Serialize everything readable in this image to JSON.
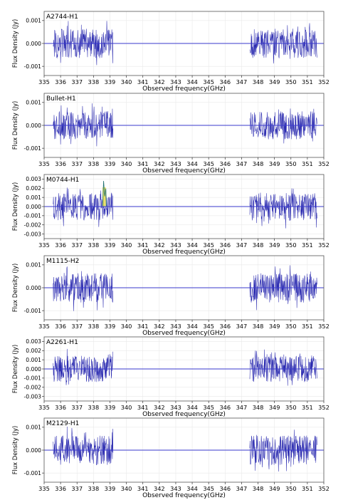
{
  "colors": {
    "spectrum": "#2b2bb0",
    "baseline": "#3a3acd",
    "grid": "#e9e9e9",
    "highlight": "#e7e05a"
  },
  "chart_data": [
    {
      "type": "line",
      "title": "A2744-H1",
      "xlabel": "Observed frequency(GHz)",
      "ylabel": "Flux Density (Jy)",
      "xlim": [
        335,
        352
      ],
      "ylim": [
        -0.0014,
        0.0014
      ],
      "x_ticks": [
        "335",
        "336",
        "337",
        "338",
        "339",
        "340",
        "341",
        "342",
        "343",
        "344",
        "345",
        "346",
        "347",
        "348",
        "349",
        "350",
        "351",
        "352"
      ],
      "y_ticks": [
        {
          "value": 0.001,
          "label": "0.001"
        },
        {
          "value": 0.0,
          "label": "0.000"
        },
        {
          "value": -0.001,
          "label": "-0.001"
        }
      ],
      "baseline": 0.0,
      "grid": true,
      "segments": [
        {
          "x_start": 335.55,
          "x_end": 339.2
        },
        {
          "x_start": 347.5,
          "x_end": 351.6
        }
      ],
      "noise_rms": 0.00038
    },
    {
      "type": "line",
      "title": "Bullet-H1",
      "xlabel": "Observed frequency(GHz)",
      "ylabel": "Flux Density (Jy)",
      "xlim": [
        335,
        352
      ],
      "ylim": [
        -0.0014,
        0.0014
      ],
      "x_ticks": [
        "335",
        "336",
        "337",
        "338",
        "339",
        "340",
        "341",
        "342",
        "343",
        "344",
        "345",
        "346",
        "347",
        "348",
        "349",
        "350",
        "351",
        "352"
      ],
      "y_ticks": [
        {
          "value": 0.001,
          "label": "0.001"
        },
        {
          "value": 0.0,
          "label": "0.000"
        },
        {
          "value": -0.001,
          "label": "-0.001"
        }
      ],
      "baseline": 0.0,
      "grid": true,
      "segments": [
        {
          "x_start": 335.55,
          "x_end": 339.2
        },
        {
          "x_start": 347.5,
          "x_end": 351.6
        }
      ],
      "noise_rms": 0.00036
    },
    {
      "type": "line",
      "title": "M0744-H1",
      "xlabel": "Observed frequency(GHz)",
      "ylabel": "Flux Density (Jy)",
      "xlim": [
        335,
        352
      ],
      "ylim": [
        -0.0035,
        0.0035
      ],
      "x_ticks": [
        "335",
        "336",
        "337",
        "338",
        "339",
        "340",
        "341",
        "342",
        "343",
        "344",
        "345",
        "346",
        "347",
        "348",
        "349",
        "350",
        "351",
        "352"
      ],
      "y_ticks": [
        {
          "value": 0.003,
          "label": "0.003"
        },
        {
          "value": 0.002,
          "label": "0.002"
        },
        {
          "value": 0.001,
          "label": "0.001"
        },
        {
          "value": 0.0,
          "label": "0.000"
        },
        {
          "value": -0.001,
          "label": "-0.001"
        },
        {
          "value": -0.002,
          "label": "-0.002"
        },
        {
          "value": -0.003,
          "label": "-0.003"
        }
      ],
      "baseline": 0.0,
      "grid": true,
      "segments": [
        {
          "x_start": 335.55,
          "x_end": 339.2
        },
        {
          "x_start": 347.5,
          "x_end": 351.6
        }
      ],
      "noise_rms": 0.0009,
      "line_feature": {
        "x_start": 338.55,
        "x_end": 338.75,
        "peak": 0.0028
      }
    },
    {
      "type": "line",
      "title": "M1115-H2",
      "xlabel": "Observed frequency(GHz)",
      "ylabel": "Flux Density (Jy)",
      "xlim": [
        335,
        352
      ],
      "ylim": [
        -0.0014,
        0.0014
      ],
      "x_ticks": [
        "335",
        "336",
        "337",
        "338",
        "339",
        "340",
        "341",
        "342",
        "343",
        "344",
        "345",
        "346",
        "347",
        "348",
        "349",
        "350",
        "351",
        "352"
      ],
      "y_ticks": [
        {
          "value": 0.001,
          "label": "0.001"
        },
        {
          "value": 0.0,
          "label": "0.000"
        },
        {
          "value": -0.001,
          "label": "-0.001"
        }
      ],
      "baseline": 0.0,
      "grid": true,
      "segments": [
        {
          "x_start": 335.55,
          "x_end": 339.2
        },
        {
          "x_start": 347.5,
          "x_end": 351.6
        }
      ],
      "noise_rms": 0.00038
    },
    {
      "type": "line",
      "title": "A2261-H1",
      "xlabel": "Observed frequency(GHz)",
      "ylabel": "Flux Density (Jy)",
      "xlim": [
        335,
        352
      ],
      "ylim": [
        -0.0035,
        0.0035
      ],
      "x_ticks": [
        "335",
        "336",
        "337",
        "338",
        "339",
        "340",
        "341",
        "342",
        "343",
        "344",
        "345",
        "346",
        "347",
        "348",
        "349",
        "350",
        "351",
        "352"
      ],
      "y_ticks": [
        {
          "value": 0.003,
          "label": "0.003"
        },
        {
          "value": 0.002,
          "label": "0.002"
        },
        {
          "value": 0.001,
          "label": "0.001"
        },
        {
          "value": 0.0,
          "label": "0.000"
        },
        {
          "value": -0.001,
          "label": "-0.001"
        },
        {
          "value": -0.002,
          "label": "-0.002"
        },
        {
          "value": -0.003,
          "label": "-0.003"
        }
      ],
      "baseline": 0.0,
      "grid": true,
      "segments": [
        {
          "x_start": 335.55,
          "x_end": 339.2
        },
        {
          "x_start": 347.5,
          "x_end": 351.6
        }
      ],
      "noise_rms": 0.00085
    },
    {
      "type": "line",
      "title": "M2129-H1",
      "xlabel": "Observed frequency(GHz)",
      "ylabel": "Flux Density (Jy)",
      "xlim": [
        335,
        352
      ],
      "ylim": [
        -0.0014,
        0.0014
      ],
      "x_ticks": [
        "335",
        "336",
        "337",
        "338",
        "339",
        "340",
        "341",
        "342",
        "343",
        "344",
        "345",
        "346",
        "347",
        "348",
        "349",
        "350",
        "351",
        "352"
      ],
      "y_ticks": [
        {
          "value": 0.001,
          "label": "0.001"
        },
        {
          "value": 0.0,
          "label": "0.000"
        },
        {
          "value": -0.001,
          "label": "-0.001"
        }
      ],
      "baseline": 0.0,
      "grid": true,
      "segments": [
        {
          "x_start": 335.55,
          "x_end": 339.2
        },
        {
          "x_start": 347.5,
          "x_end": 351.6
        }
      ],
      "noise_rms": 0.00038
    }
  ]
}
